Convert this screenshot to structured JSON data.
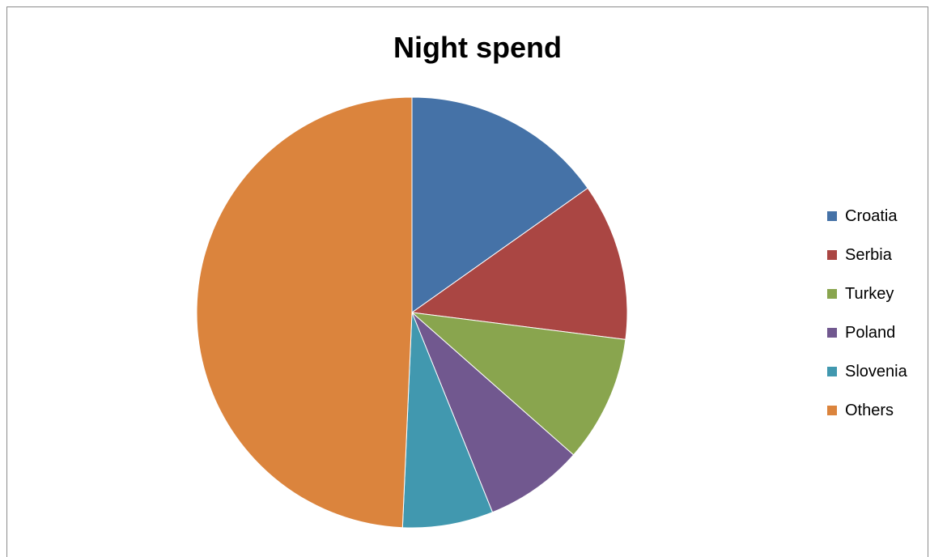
{
  "chart_data": {
    "type": "pie",
    "title": "Night spend",
    "legend_position": "right",
    "slices": [
      {
        "label": "Croatia",
        "value": 15.2,
        "color": "#4572A7"
      },
      {
        "label": "Serbia",
        "value": 11.8,
        "color": "#AA4643"
      },
      {
        "label": "Turkey",
        "value": 9.5,
        "color": "#89A54E"
      },
      {
        "label": "Poland",
        "value": 7.4,
        "color": "#71588F"
      },
      {
        "label": "Slovenia",
        "value": 6.8,
        "color": "#4198AF"
      },
      {
        "label": "Others",
        "value": 49.3,
        "color": "#DB843D"
      }
    ]
  }
}
